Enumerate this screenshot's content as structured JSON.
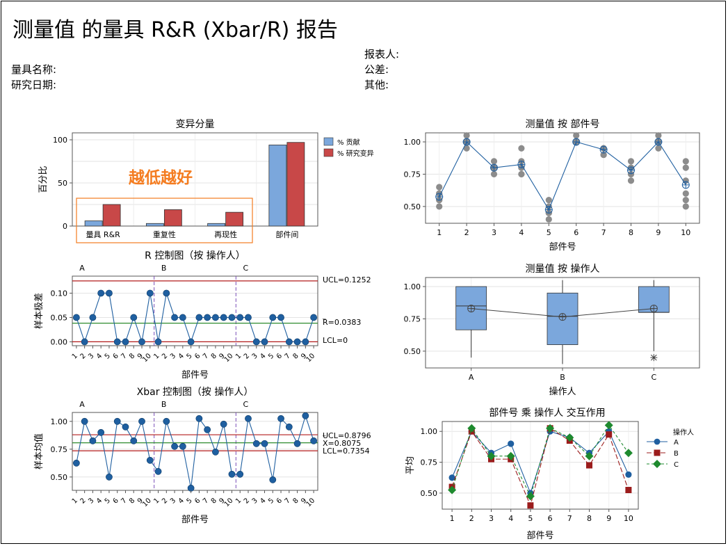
{
  "report": {
    "title": "测量值 的量具 R&R (Xbar/R) 报告",
    "gauge_name_label": "量具名称:",
    "study_date_label": "研究日期:",
    "reporter_label": "报表人:",
    "tolerance_label": "公差:",
    "other_label": "其他:"
  },
  "colors": {
    "contrib": "#7ba7dc",
    "studyvar": "#c84848",
    "series_a": "#1f5fa0",
    "series_b": "#9b1c1c",
    "series_c": "#1e8a2e",
    "limit": "#b31b1b",
    "center": "#2e8b2e",
    "divider": "#7b4fb8",
    "annotation": "#f47c20",
    "dots": "#8c8c8c"
  },
  "annotation": {
    "text": "越低越好"
  },
  "chart_data": [
    {
      "id": "components",
      "type": "bar",
      "title": "变异分量",
      "ylabel": "百分比",
      "categories": [
        "量具 R&R",
        "重复性",
        "再现性",
        "部件间"
      ],
      "series": [
        {
          "name": "% 贡献",
          "values": [
            6,
            3,
            3,
            94
          ]
        },
        {
          "name": "% 研究变异",
          "values": [
            25,
            19,
            16,
            97
          ]
        }
      ],
      "ylim": [
        0,
        100
      ],
      "yticks": [
        0,
        50,
        100
      ]
    },
    {
      "id": "r_chart",
      "type": "line",
      "title": "R 控制图（按 操作人）",
      "xlabel": "部件号",
      "ylabel": "样本极差",
      "groups": [
        "A",
        "B",
        "C"
      ],
      "x_ticks": [
        "1",
        "2",
        "3",
        "4",
        "5",
        "6",
        "7",
        "8",
        "9",
        "10",
        "1",
        "2",
        "3",
        "4",
        "5",
        "6",
        "7",
        "8",
        "9",
        "10",
        "1",
        "2",
        "3",
        "4",
        "5",
        "6",
        "7",
        "8",
        "9",
        "10"
      ],
      "values": [
        0.05,
        0.0,
        0.05,
        0.1,
        0.1,
        0.0,
        0.0,
        0.05,
        0.0,
        0.1,
        0.0,
        0.1,
        0.05,
        0.05,
        0.0,
        0.05,
        0.05,
        0.05,
        0.05,
        0.05,
        0.05,
        0.05,
        0.0,
        0.0,
        0.05,
        0.05,
        0.0,
        0.0,
        0.0,
        0.05
      ],
      "ucl": 0.1252,
      "center": 0.0383,
      "lcl": 0,
      "ucl_label": "UCL=0.1252",
      "center_label": "R=0.0383",
      "center_bar": "_",
      "lcl_label": "LCL=0",
      "ylim": [
        -0.008,
        0.135
      ],
      "yticks": [
        0.0,
        0.05,
        0.1
      ],
      "ytick_labels": [
        "0.00",
        "0.05",
        "0.10"
      ]
    },
    {
      "id": "xbar_chart",
      "type": "line",
      "title": "Xbar 控制图（按 操作人）",
      "xlabel": "部件号",
      "ylabel": "样本均值",
      "groups": [
        "A",
        "B",
        "C"
      ],
      "x_ticks": [
        "1",
        "2",
        "3",
        "4",
        "5",
        "6",
        "7",
        "8",
        "9",
        "10",
        "1",
        "2",
        "3",
        "4",
        "5",
        "6",
        "7",
        "8",
        "9",
        "10",
        "1",
        "2",
        "3",
        "4",
        "5",
        "6",
        "7",
        "8",
        "9",
        "10"
      ],
      "values": [
        0.625,
        1.0,
        0.825,
        0.9,
        0.5,
        1.0,
        0.95,
        0.825,
        1.0,
        0.65,
        0.55,
        1.0,
        0.775,
        0.775,
        0.4,
        1.025,
        0.925,
        0.725,
        0.975,
        0.525,
        0.525,
        1.025,
        0.8,
        0.8,
        0.475,
        1.025,
        0.95,
        0.8,
        1.05,
        0.825
      ],
      "ucl": 0.8796,
      "center": 0.8075,
      "lcl": 0.7354,
      "ucl_label": "UCL=0.8796",
      "center_label": "X=0.8075",
      "center_bar": "_",
      "lcl_label": "LCL=0.7354",
      "ylim": [
        0.38,
        1.08
      ],
      "yticks": [
        0.5,
        0.75,
        1.0
      ],
      "ytick_labels": [
        "0.50",
        "0.75",
        "1.00"
      ]
    },
    {
      "id": "by_part",
      "type": "scatter",
      "title": "测量值 按 部件号",
      "xlabel": "部件号",
      "categories": [
        "1",
        "2",
        "3",
        "4",
        "5",
        "6",
        "7",
        "8",
        "9",
        "10"
      ],
      "points": [
        [
          0.65,
          0.6,
          0.55,
          0.5,
          0.55,
          0.6
        ],
        [
          1.0,
          1.0,
          0.95,
          1.0,
          1.05,
          1.0
        ],
        [
          0.85,
          0.8,
          0.75,
          0.8,
          0.8,
          0.8
        ],
        [
          0.95,
          0.85,
          0.75,
          0.75,
          0.8,
          0.8
        ],
        [
          0.55,
          0.45,
          0.4,
          0.5,
          0.45,
          0.45
        ],
        [
          1.0,
          1.05,
          1.0,
          1.0,
          1.0,
          1.0
        ],
        [
          0.95,
          0.9,
          0.95,
          0.9,
          0.95,
          0.95
        ],
        [
          0.85,
          0.75,
          0.75,
          0.7,
          0.8,
          0.8
        ],
        [
          1.05,
          0.95,
          1.0,
          1.0,
          1.0,
          1.0
        ],
        [
          0.85,
          0.8,
          0.55,
          0.5,
          0.6,
          0.7
        ]
      ],
      "means": [
        0.575,
        1.0,
        0.8,
        0.825,
        0.475,
        1.0,
        0.94,
        0.78,
        1.0,
        0.667
      ],
      "ylim": [
        0.37,
        1.07
      ],
      "yticks": [
        0.5,
        0.75,
        1.0
      ],
      "ytick_labels": [
        "0.50",
        "0.75",
        "1.00"
      ]
    },
    {
      "id": "by_operator",
      "type": "box",
      "title": "测量值 按 操作人",
      "xlabel": "操作人",
      "categories": [
        "A",
        "B",
        "C"
      ],
      "boxes": [
        {
          "q1": 0.665,
          "median": 0.85,
          "q3": 1.0,
          "whisker_low": 0.45,
          "whisker_high": 1.0,
          "mean": 0.83,
          "outliers": []
        },
        {
          "q1": 0.55,
          "median": 0.77,
          "q3": 0.95,
          "whisker_low": 0.4,
          "whisker_high": 1.05,
          "mean": 0.765,
          "outliers": []
        },
        {
          "q1": 0.8,
          "median": 0.8,
          "q3": 1.0,
          "whisker_low": 0.5,
          "whisker_high": 1.05,
          "mean": 0.83,
          "outliers": [
            0.45
          ]
        }
      ],
      "ylim": [
        0.37,
        1.07
      ],
      "yticks": [
        0.5,
        0.75,
        1.0
      ],
      "ytick_labels": [
        "0.50",
        "0.75",
        "1.00"
      ]
    },
    {
      "id": "interaction",
      "type": "line",
      "title": "部件号 乘 操作人 交互作用",
      "xlabel": "部件号",
      "ylabel": "平均",
      "legend_title": "操作人",
      "categories": [
        "1",
        "2",
        "3",
        "4",
        "5",
        "6",
        "7",
        "8",
        "9",
        "10"
      ],
      "series": [
        {
          "name": "A",
          "values": [
            0.625,
            1.0,
            0.825,
            0.9,
            0.5,
            1.0,
            0.95,
            0.825,
            1.0,
            0.65
          ]
        },
        {
          "name": "B",
          "values": [
            0.55,
            1.0,
            0.775,
            0.775,
            0.4,
            1.025,
            0.925,
            0.725,
            0.975,
            0.525
          ]
        },
        {
          "name": "C",
          "values": [
            0.525,
            1.025,
            0.8,
            0.8,
            0.475,
            1.025,
            0.95,
            0.8,
            1.05,
            0.825
          ]
        }
      ],
      "ylim": [
        0.37,
        1.08
      ],
      "yticks": [
        0.5,
        0.75,
        1.0
      ],
      "ytick_labels": [
        "0.50",
        "0.75",
        "1.00"
      ]
    }
  ]
}
